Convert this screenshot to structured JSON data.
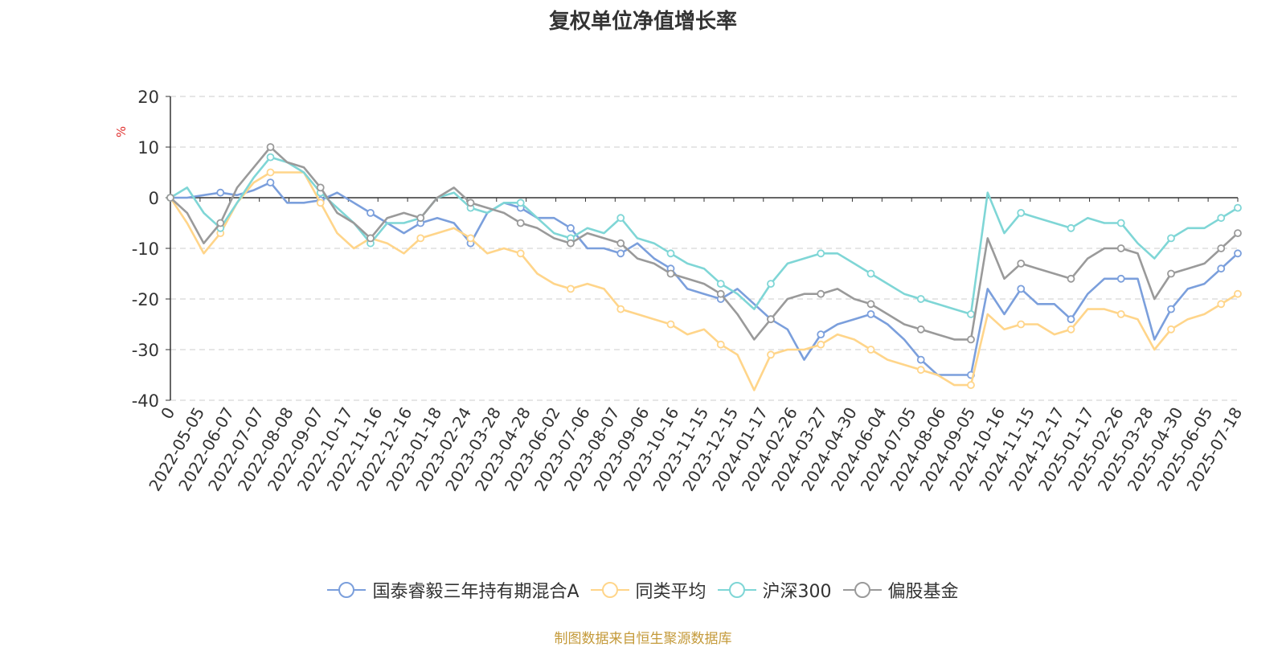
{
  "chart_data": {
    "type": "line",
    "title": "复权单位净值增长率",
    "ylabel": "%",
    "ylim": [
      -40,
      20
    ],
    "yticks": [
      20,
      10,
      0,
      -10,
      -20,
      -30,
      -40
    ],
    "grid": true,
    "legend_position": "bottom",
    "xticklabels": [
      "0",
      "2022-05-05",
      "2022-06-07",
      "2022-07-07",
      "2022-08-08",
      "2022-09-07",
      "2022-10-17",
      "2022-11-16",
      "2022-12-16",
      "2023-01-18",
      "2023-02-24",
      "2023-03-28",
      "2023-04-28",
      "2023-06-02",
      "2023-07-06",
      "2023-08-07",
      "2023-09-06",
      "2023-10-16",
      "2023-11-15",
      "2023-12-15",
      "2024-01-17",
      "2024-02-26",
      "2024-03-27",
      "2024-04-30",
      "2024-06-04",
      "2024-07-05",
      "2024-08-06",
      "2024-09-05",
      "2024-10-16",
      "2024-11-15",
      "2024-12-17",
      "2025-01-17",
      "2025-02-26",
      "2025-03-28",
      "2025-04-30",
      "2025-06-05",
      "2025-07-18"
    ],
    "series": [
      {
        "name": "国泰睿毅三年持有期混合A",
        "color": "#7b9fdc",
        "values": [
          0,
          0,
          0.5,
          1,
          0.5,
          1.5,
          3,
          -1,
          -1,
          -0.5,
          1,
          -1,
          -3,
          -5,
          -7,
          -5,
          -4,
          -5,
          -9,
          -3,
          -1,
          -2,
          -4,
          -4,
          -6,
          -10,
          -10,
          -11,
          -9,
          -12,
          -14,
          -18,
          -19,
          -20,
          -18,
          -21,
          -24,
          -26,
          -32,
          -27,
          -25,
          -24,
          -23,
          -25,
          -28,
          -32,
          -35,
          -35,
          -35,
          -18,
          -23,
          -18,
          -21,
          -21,
          -24,
          -19,
          -16,
          -16,
          -16,
          -28,
          -22,
          -18,
          -17,
          -14,
          -11
        ]
      },
      {
        "name": "同类平均",
        "color": "#ffd58a",
        "values": [
          0,
          -5,
          -11,
          -7,
          -1,
          3,
          5,
          5,
          5,
          -1,
          -7,
          -10,
          -8,
          -9,
          -11,
          -8,
          -7,
          -6,
          -8,
          -11,
          -10,
          -11,
          -15,
          -17,
          -18,
          -17,
          -18,
          -22,
          -23,
          -24,
          -25,
          -27,
          -26,
          -29,
          -31,
          -38,
          -31,
          -30,
          -30,
          -29,
          -27,
          -28,
          -30,
          -32,
          -33,
          -34,
          -35,
          -37,
          -37,
          -23,
          -26,
          -25,
          -25,
          -27,
          -26,
          -22,
          -22,
          -23,
          -24,
          -30,
          -26,
          -24,
          -23,
          -21,
          -19
        ]
      },
      {
        "name": "沪深300",
        "color": "#7fd6d6",
        "values": [
          0,
          2,
          -3,
          -6,
          -1,
          4,
          8,
          7,
          5,
          1,
          -2,
          -5,
          -9,
          -5,
          -5,
          -4,
          0,
          1,
          -2,
          -3,
          -1,
          -1,
          -4,
          -7,
          -8,
          -6,
          -7,
          -4,
          -8,
          -9,
          -11,
          -13,
          -14,
          -17,
          -19,
          -22,
          -17,
          -13,
          -12,
          -11,
          -11,
          -13,
          -15,
          -17,
          -19,
          -20,
          -21,
          -22,
          -23,
          1,
          -7,
          -3,
          -4,
          -5,
          -6,
          -4,
          -5,
          -5,
          -9,
          -12,
          -8,
          -6,
          -6,
          -4,
          -2
        ]
      },
      {
        "name": "偏股基金",
        "color": "#9a9a9a",
        "values": [
          0,
          -3,
          -9,
          -5,
          2,
          6,
          10,
          7,
          6,
          2,
          -3,
          -5,
          -8,
          -4,
          -3,
          -4,
          0,
          2,
          -1,
          -2,
          -3,
          -5,
          -6,
          -8,
          -9,
          -7,
          -8,
          -9,
          -12,
          -13,
          -15,
          -16,
          -17,
          -19,
          -23,
          -28,
          -24,
          -20,
          -19,
          -19,
          -18,
          -20,
          -21,
          -23,
          -25,
          -26,
          -27,
          -28,
          -28,
          -8,
          -16,
          -13,
          -14,
          -15,
          -16,
          -12,
          -10,
          -10,
          -11,
          -20,
          -15,
          -14,
          -13,
          -10,
          -7
        ]
      }
    ]
  },
  "source": "制图数据来自恒生聚源数据库"
}
